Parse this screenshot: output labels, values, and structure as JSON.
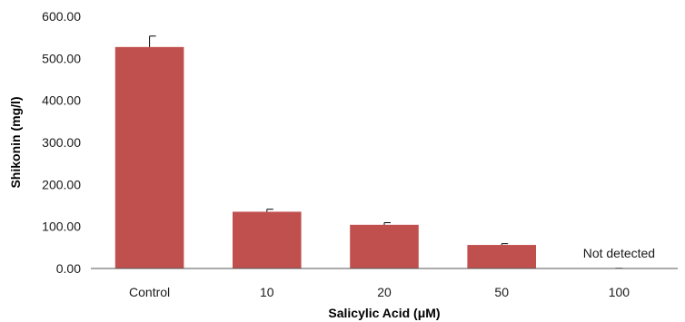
{
  "chart_data": {
    "type": "bar",
    "categories": [
      "Control",
      "10",
      "20",
      "50",
      "100"
    ],
    "values": [
      527,
      135,
      104,
      56,
      0
    ],
    "errors": [
      26,
      6,
      5,
      3,
      0
    ],
    "ylabel": "Shikonin (mg/l)",
    "xlabel": "Salicylic Acid (μM)",
    "ylim": [
      0,
      600
    ],
    "yticks": [
      "0.00",
      "100.00",
      "200.00",
      "300.00",
      "400.00",
      "500.00",
      "600.00"
    ],
    "annotation": "Not detected",
    "bar_color": "#c0504d",
    "grid": false
  }
}
